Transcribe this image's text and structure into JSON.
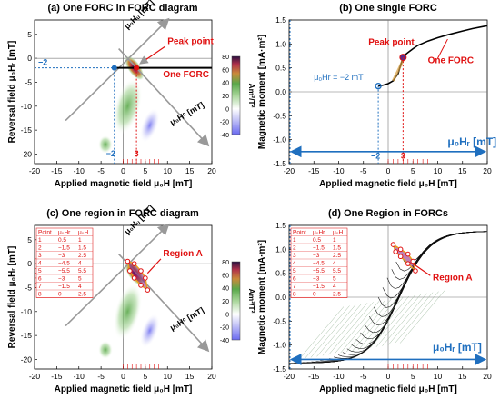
{
  "chart_data": [
    {
      "type": "heatmap",
      "title": "(a) One FORC in FORC diagram",
      "xlabel": "Applied magnetic field μ₀H [mT]",
      "ylabel": "Reversal field μ₀Hᵣ [mT]",
      "colorbar_label": "Am²/T²",
      "colorbar_ticks": [
        "-40",
        "-20",
        "0",
        "20",
        "40",
        "60",
        "80"
      ],
      "xlim": [
        -20,
        20
      ],
      "ylim": [
        -22,
        8
      ],
      "xticks": [
        "-20",
        "-15",
        "-10",
        "-5",
        "0",
        "5",
        "10",
        "15",
        "20"
      ],
      "yticks": [
        "-20",
        "-15",
        "-10",
        "-5",
        "0",
        "5"
      ],
      "axis_hu": "μ₀Hᵤ [mT]",
      "axis_hc": "μ₀Hᶜ [mT]",
      "peak_label": "Peak point",
      "forc_label": "One FORC",
      "peak": [
        3,
        -2
      ],
      "reversal_value_label": "−2",
      "x_marker_labels": [
        "−2",
        "3"
      ],
      "forc_y": -2
    },
    {
      "type": "line",
      "title": "(b) One single FORC",
      "xlabel": "Applied magnetic field μ₀H [mT]",
      "ylabel": "Magnetic moment [mA·m²]",
      "xlim": [
        -20,
        20
      ],
      "ylim": [
        -1.5,
        1.5
      ],
      "xticks": [
        "-20",
        "-15",
        "-10",
        "-5",
        "0",
        "5",
        "10",
        "15",
        "20"
      ],
      "yticks": [
        "-1.5",
        "-1.0",
        "-0.5",
        "0.0",
        "0.5",
        "1.0",
        "1.5"
      ],
      "hr_label": "μ₀Hr = −2 mT",
      "peak_label": "Peak point",
      "forc_label": "One FORC",
      "arrow_label": "μ₀Hᵣ [mT]",
      "x_marker_labels": [
        "−2",
        "3"
      ],
      "series": [
        {
          "x": [
            -2,
            -1.5,
            -1,
            0,
            1,
            2,
            2.5,
            3,
            3.5,
            4,
            5,
            6,
            8,
            10,
            12,
            15,
            17,
            20
          ],
          "y": [
            0.12,
            0.13,
            0.14,
            0.17,
            0.23,
            0.38,
            0.55,
            0.72,
            0.78,
            0.82,
            0.9,
            0.97,
            1.06,
            1.13,
            1.19,
            1.27,
            1.32,
            1.38
          ]
        }
      ]
    },
    {
      "type": "heatmap",
      "title": "(c) One region in FORC diagram",
      "xlabel": "Applied magnetic field μ₀H [mT]",
      "ylabel": "Reversal field μ₀Hᵣ [mT]",
      "colorbar_label": "Am²/T²",
      "colorbar_ticks": [
        "-40",
        "-20",
        "0",
        "20",
        "40",
        "60",
        "80"
      ],
      "xlim": [
        -20,
        20
      ],
      "ylim": [
        -22,
        8
      ],
      "xticks": [
        "-20",
        "-15",
        "-10",
        "-5",
        "0",
        "5",
        "10",
        "15",
        "20"
      ],
      "yticks": [
        "-20",
        "-15",
        "-10",
        "-5",
        "0",
        "5"
      ],
      "axis_hu": "μ₀Hᵤ [mT]",
      "axis_hc": "μ₀Hᶜ [mT]",
      "region_label": "Region A",
      "table": {
        "headers": [
          "Point",
          "μ₀Hr",
          "μ₀H"
        ],
        "rows": [
          [
            "1",
            "0.5",
            "1"
          ],
          [
            "2",
            "−1.5",
            "1.5"
          ],
          [
            "3",
            "−3",
            "2.5"
          ],
          [
            "4",
            "−4.5",
            "4"
          ],
          [
            "5",
            "−5.5",
            "5.5"
          ],
          [
            "6",
            "−3",
            "5"
          ],
          [
            "7",
            "−1.5",
            "4"
          ],
          [
            "8",
            "0",
            "2.5"
          ]
        ]
      },
      "region_points": [
        [
          1,
          0.5
        ],
        [
          1.5,
          -1.5
        ],
        [
          2.5,
          -3
        ],
        [
          4,
          -4.5
        ],
        [
          5.5,
          -5.5
        ],
        [
          5,
          -3
        ],
        [
          4,
          -1.5
        ],
        [
          2.5,
          0
        ]
      ]
    },
    {
      "type": "line",
      "title": "(d) One Region in FORCs",
      "xlabel": "Applied magnetic field μ₀H [mT]",
      "ylabel": "Magnetic moment [mA·m²]",
      "xlim": [
        -20,
        20
      ],
      "ylim": [
        -1.5,
        1.5
      ],
      "xticks": [
        "-20",
        "-15",
        "-10",
        "-5",
        "0",
        "5",
        "10",
        "15",
        "20"
      ],
      "yticks": [
        "-1.5",
        "-1.0",
        "-0.5",
        "0.0",
        "0.5",
        "1.0",
        "1.5"
      ],
      "region_label": "Region A",
      "arrow_label": "μ₀Hᵣ [mT]",
      "table": {
        "headers": [
          "Point",
          "μ₀Hr",
          "μ₀H"
        ],
        "rows": [
          [
            "1",
            "0.5",
            "1"
          ],
          [
            "2",
            "−1.5",
            "1.5"
          ],
          [
            "3",
            "−3",
            "2.5"
          ],
          [
            "4",
            "−4.5",
            "4"
          ],
          [
            "5",
            "−5.5",
            "5.5"
          ],
          [
            "6",
            "−3",
            "5"
          ],
          [
            "7",
            "−1.5",
            "4"
          ],
          [
            "8",
            "0",
            "2.5"
          ]
        ]
      },
      "region_points": [
        [
          1,
          1.1
        ],
        [
          1.5,
          0.95
        ],
        [
          2.5,
          0.85
        ],
        [
          4,
          0.7
        ],
        [
          5.5,
          0.55
        ],
        [
          5,
          0.75
        ],
        [
          4,
          0.9
        ],
        [
          2.5,
          1.0
        ]
      ]
    }
  ],
  "colors": {
    "forc_line": "#000000",
    "peak_red": "#e01010",
    "reversal_blue": "#1f6fbf",
    "region_fill": "#8a1a7a"
  }
}
